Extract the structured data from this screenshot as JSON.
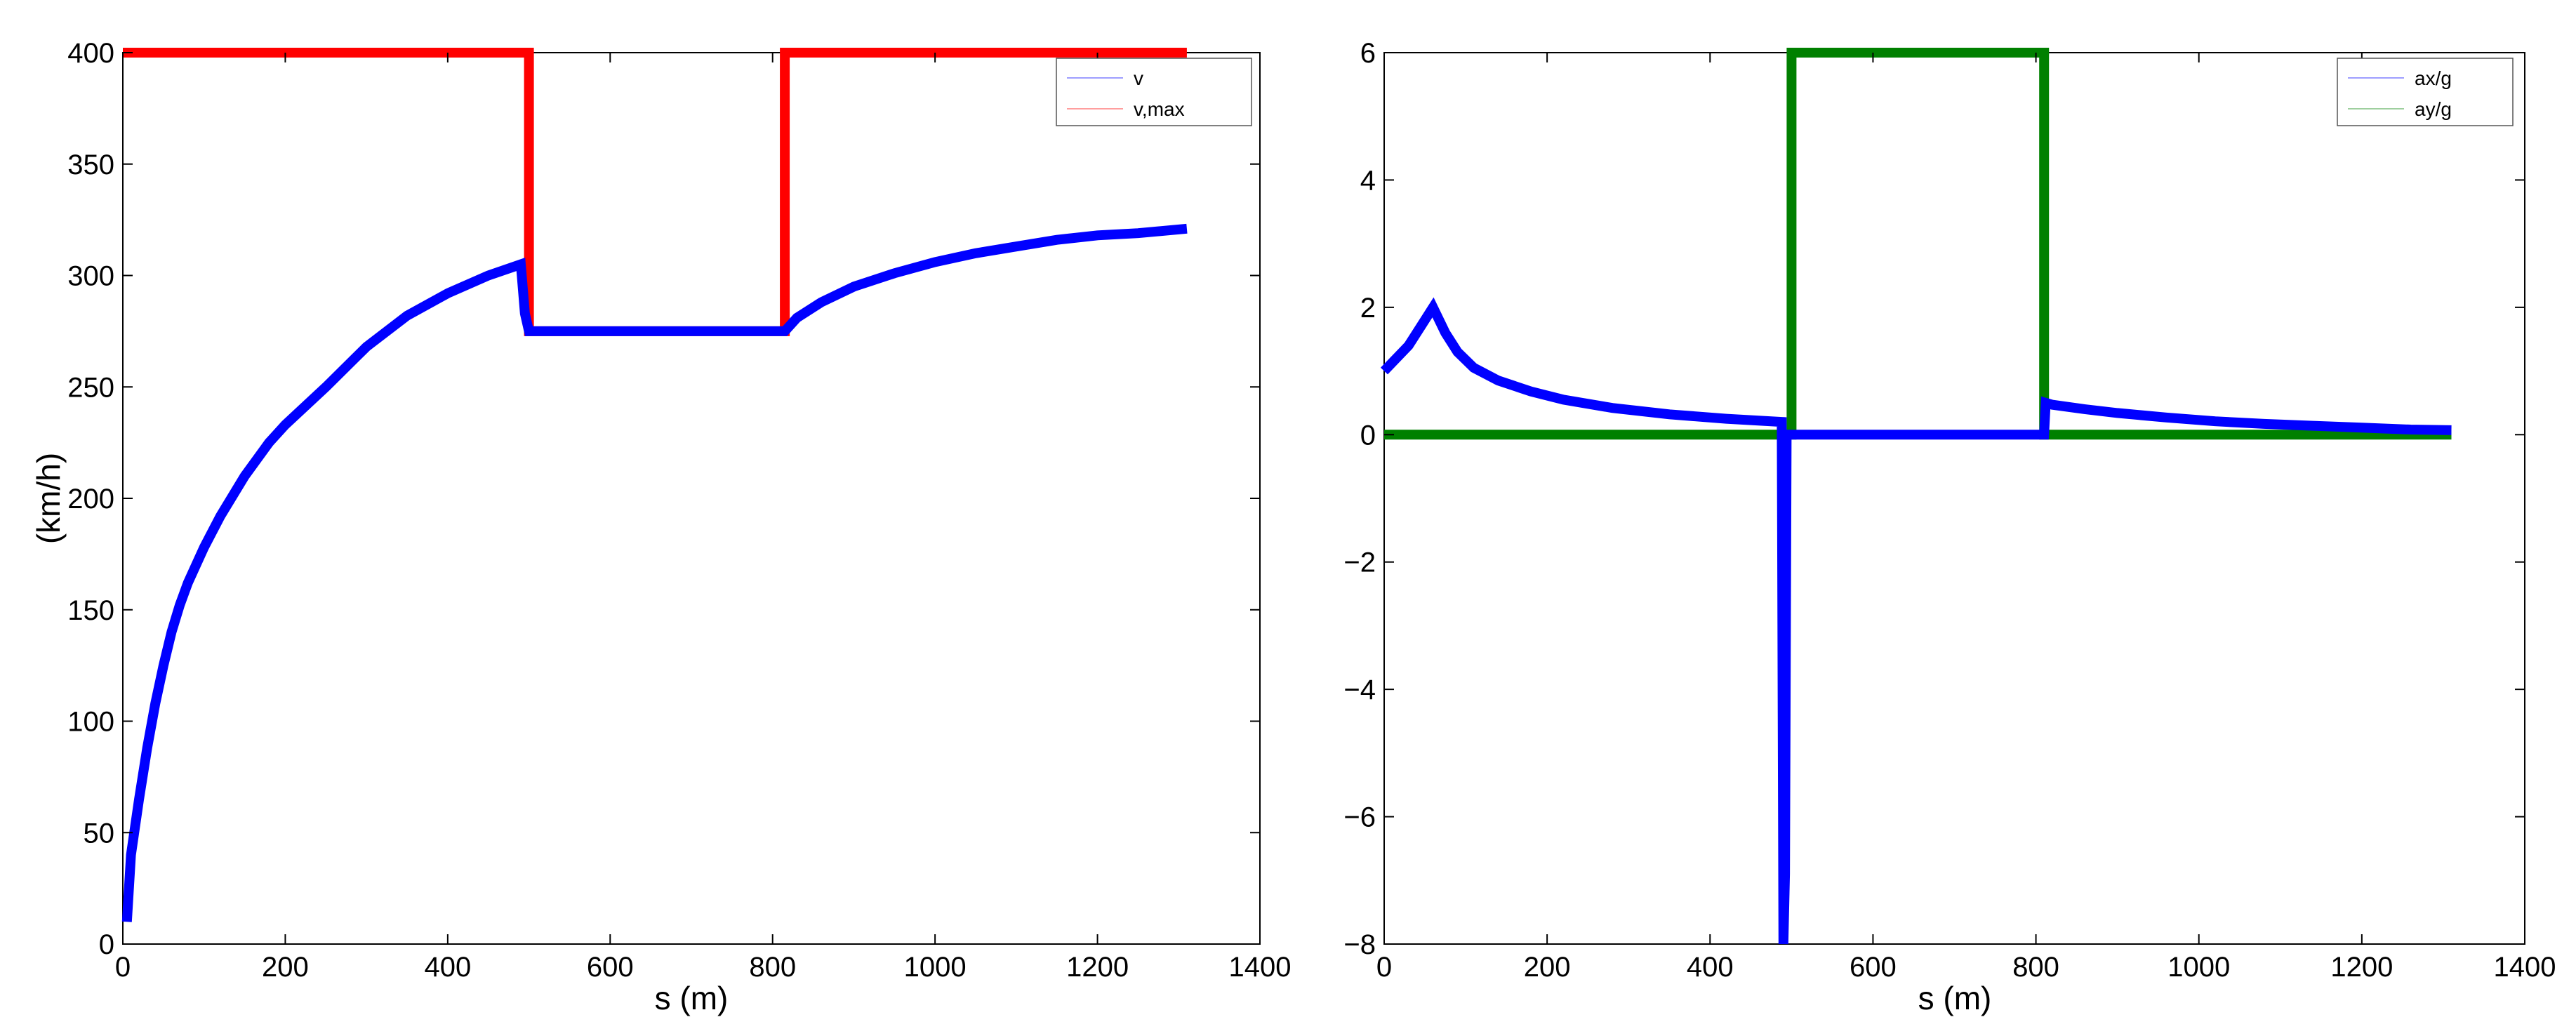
{
  "chart_data": [
    {
      "type": "line",
      "title": "",
      "xlabel": "s (m)",
      "ylabel": "(km/h)",
      "xlim": [
        0,
        1400
      ],
      "ylim": [
        0,
        400
      ],
      "xticks": [
        0,
        200,
        400,
        600,
        800,
        1000,
        1200,
        1400
      ],
      "yticks": [
        0,
        50,
        100,
        150,
        200,
        250,
        300,
        350,
        400
      ],
      "grid": false,
      "legend_position": "top-right",
      "series": [
        {
          "name": "v",
          "color": "#0000ff",
          "x": [
            5,
            10,
            20,
            30,
            40,
            50,
            60,
            70,
            80,
            100,
            120,
            150,
            180,
            200,
            250,
            300,
            350,
            400,
            450,
            490,
            495,
            500,
            560,
            620,
            680,
            740,
            790,
            815,
            830,
            860,
            900,
            950,
            1000,
            1050,
            1100,
            1150,
            1200,
            1250,
            1310
          ],
          "y": [
            10,
            40,
            65,
            88,
            108,
            125,
            140,
            152,
            162,
            178,
            192,
            210,
            225,
            233,
            250,
            268,
            282,
            292,
            300,
            305,
            283,
            275,
            275,
            275,
            275,
            275,
            275,
            275,
            281,
            288,
            295,
            301,
            306,
            310,
            313,
            316,
            318,
            319,
            321
          ]
        },
        {
          "name": "v,max",
          "color": "#ff0000",
          "x": [
            0,
            450,
            450,
            500,
            500,
            815,
            815,
            1200,
            1200,
            1310
          ],
          "y": [
            400,
            400,
            400,
            400,
            275,
            275,
            400,
            400,
            400,
            400
          ]
        }
      ]
    },
    {
      "type": "line",
      "title": "",
      "xlabel": "s (m)",
      "ylabel": "",
      "xlim": [
        0,
        1400
      ],
      "ylim": [
        -8,
        6
      ],
      "xticks": [
        0,
        200,
        400,
        600,
        800,
        1000,
        1200,
        1400
      ],
      "yticks": [
        -8,
        -6,
        -4,
        -2,
        0,
        2,
        4,
        6
      ],
      "grid": false,
      "legend_position": "top-right",
      "series": [
        {
          "name": "ax/g",
          "color": "#0000ff",
          "x": [
            0,
            15,
            30,
            45,
            60,
            75,
            90,
            110,
            140,
            180,
            220,
            280,
            350,
            420,
            488,
            490,
            492,
            494,
            500,
            560,
            620,
            680,
            740,
            810,
            812,
            820,
            860,
            900,
            960,
            1020,
            1080,
            1140,
            1200,
            1260,
            1310
          ],
          "y": [
            1.0,
            1.2,
            1.4,
            1.7,
            2.0,
            1.6,
            1.3,
            1.05,
            0.85,
            0.68,
            0.55,
            0.42,
            0.32,
            0.25,
            0.2,
            -8.0,
            -6.9,
            0.0,
            0.0,
            0.0,
            0.0,
            0.0,
            0.0,
            0.0,
            0.5,
            0.47,
            0.4,
            0.34,
            0.27,
            0.21,
            0.17,
            0.14,
            0.11,
            0.08,
            0.07
          ]
        },
        {
          "name": "ay/g",
          "color": "#008000",
          "x": [
            0,
            500,
            500,
            810,
            810,
            1310
          ],
          "y": [
            0,
            0,
            6,
            6,
            0,
            0
          ]
        }
      ]
    }
  ]
}
